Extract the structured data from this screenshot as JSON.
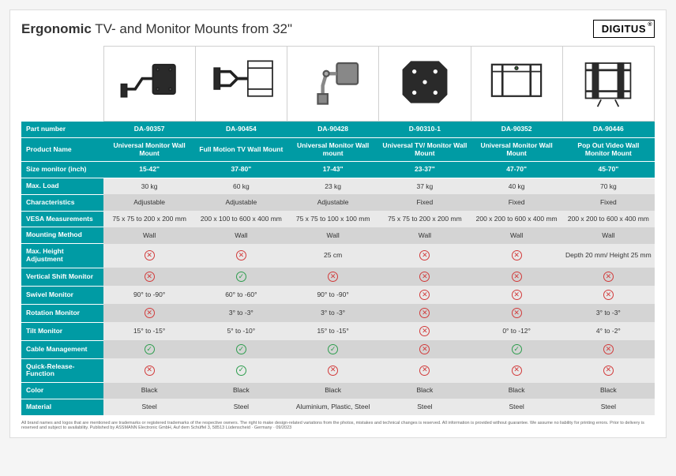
{
  "header": {
    "title_bold": "Ergonomic",
    "title_rest": " TV- and Monitor Mounts from 32\"",
    "brand": "DIGITUS"
  },
  "labels": {
    "part_number": "Part number",
    "product_name": "Product Name",
    "size_monitor": "Size monitor (inch)",
    "max_load": "Max. Load",
    "characteristics": "Characteristics",
    "vesa": "VESA Measurements",
    "mounting": "Mounting Method",
    "max_height": "Max. Height Adjustment",
    "vshift": "Vertical Shift Monitor",
    "swivel": "Swivel Monitor",
    "rotation": "Rotation Monitor",
    "tilt": "Tilt Monitor",
    "cable": "Cable Management",
    "quick": "Quick-Release-Function",
    "color": "Color",
    "material": "Material"
  },
  "products": [
    {
      "part": "DA-90357",
      "name": "Universal Monitor Wall Mount",
      "size": "15-42\"",
      "load": "30 kg",
      "char": "Adjustable",
      "vesa": "75 x 75 to 200 x 200 mm",
      "mount": "Wall",
      "maxh": "x",
      "vshift": "x",
      "swivel": "90° to -90°",
      "rotation": "x",
      "tilt": "15° to -15°",
      "cable": "c",
      "quick": "x",
      "color": "Black",
      "material": "Steel"
    },
    {
      "part": "DA-90454",
      "name": "Full Motion TV Wall Mount",
      "size": "37-80\"",
      "load": "60 kg",
      "char": "Adjustable",
      "vesa": "200 x 100 to 600 x 400 mm",
      "mount": "Wall",
      "maxh": "x",
      "vshift": "c",
      "swivel": "60° to -60°",
      "rotation": "3° to -3°",
      "tilt": "5° to -10°",
      "cable": "c",
      "quick": "c",
      "color": "Black",
      "material": "Steel"
    },
    {
      "part": "DA-90428",
      "name": "Universal Monitor Wall mount",
      "size": "17-43\"",
      "load": "23 kg",
      "char": "Adjustable",
      "vesa": "75 x 75 to 100 x 100 mm",
      "mount": "Wall",
      "maxh": "25 cm",
      "vshift": "x",
      "swivel": "90° to -90°",
      "rotation": "3° to -3°",
      "tilt": "15° to -15°",
      "cable": "c",
      "quick": "x",
      "color": "Black",
      "material": "Aluminium, Plastic, Steel"
    },
    {
      "part": "D-90310-1",
      "name": "Universal TV/ Monitor Wall Mount",
      "size": "23-37\"",
      "load": "37 kg",
      "char": "Fixed",
      "vesa": "75 x 75 to 200 x 200 mm",
      "mount": "Wall",
      "maxh": "x",
      "vshift": "x",
      "swivel": "x",
      "rotation": "x",
      "tilt": "x",
      "cable": "x",
      "quick": "x",
      "color": "Black",
      "material": "Steel"
    },
    {
      "part": "DA-90352",
      "name": "Universal Monitor Wall Mount",
      "size": "47-70\"",
      "load": "40 kg",
      "char": "Fixed",
      "vesa": "200 x 200 to 600 x 400 mm",
      "mount": "Wall",
      "maxh": "x",
      "vshift": "x",
      "swivel": "x",
      "rotation": "x",
      "tilt": "0° to -12°",
      "cable": "c",
      "quick": "x",
      "color": "Black",
      "material": "Steel"
    },
    {
      "part": "DA-90446",
      "name": "Pop Out Video Wall Monitor Mount",
      "size": "45-70\"",
      "load": "70 kg",
      "char": "Fixed",
      "vesa": "200 x 200 to 600 x 400 mm",
      "mount": "Wall",
      "maxh": "Depth 20 mm/ Height 25 mm",
      "vshift": "x",
      "swivel": "x",
      "rotation": "3° to -3°",
      "tilt": "4° to -2°",
      "cable": "x",
      "quick": "x",
      "color": "Black",
      "material": "Steel"
    }
  ],
  "footer": "All brand names and logos that are mentioned are trademarks or registered trademarks of the respective owners. The right to make design-related variations from the photos, mistakes and technical changes is reserved. All information is provided without guarantee. We assume no liability for printing errors. Prior to delivery is reserved and subject to availability. Published by ASSMANN Electronic GmbH, Auf dem Schüffel 3, 58513 Lüdenscheid · Germany · 09/2023"
}
